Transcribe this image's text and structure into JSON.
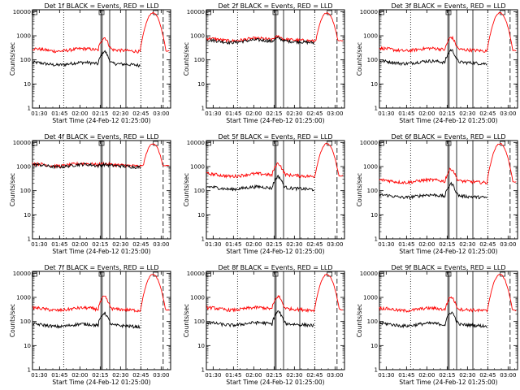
{
  "chart_data": {
    "type": "line",
    "layout": "3x3 grid",
    "x_tick_labels": [
      "01:30",
      "01:45",
      "02:00",
      "02:15",
      "02:30",
      "02:45",
      "03:00"
    ],
    "x_ticks_minutes": [
      90,
      105,
      120,
      135,
      150,
      165,
      180
    ],
    "xlim_minutes": [
      85,
      187
    ],
    "xlabel": "Start Time (24-Feb-12 01:25:00)",
    "ylabel": "Counts/sec",
    "y_scale": "log",
    "ylim": [
      1,
      12000
    ],
    "y_tick_labels": [
      "1",
      "10",
      "100",
      "1000",
      "10000"
    ],
    "series_colors": {
      "events": "#000000",
      "lld": "#ff0000"
    },
    "vlines_solid_minutes": [
      135.5,
      136.5,
      142,
      154
    ],
    "vlines_dotted_minutes": [
      108,
      165
    ],
    "vlines_dashed_minutes": [
      181.5
    ],
    "panels": [
      {
        "title": "Det 1f BLACK = Events, RED = LLD",
        "events_base": 70,
        "lld_base": 260,
        "bump_scale": 1.0
      },
      {
        "title": "Det 2f BLACK = Events, RED = LLD",
        "events_base": 600,
        "lld_base": 700,
        "bump_scale": 0.15
      },
      {
        "title": "Det 3f BLACK = Events, RED = LLD",
        "events_base": 80,
        "lld_base": 270,
        "bump_scale": 1.0
      },
      {
        "title": "Det 4f BLACK = Events, RED = LLD",
        "events_base": 1100,
        "lld_base": 1200,
        "bump_scale": 0.05
      },
      {
        "title": "Det 5f BLACK = Events, RED = LLD",
        "events_base": 130,
        "lld_base": 450,
        "bump_scale": 0.9
      },
      {
        "title": "Det 6f BLACK = Events, RED = LLD",
        "events_base": 60,
        "lld_base": 250,
        "bump_scale": 1.0
      },
      {
        "title": "Det 7f BLACK = Events, RED = LLD",
        "events_base": 70,
        "lld_base": 330,
        "bump_scale": 1.0
      },
      {
        "title": "Det 8f BLACK = Events, RED = LLD",
        "events_base": 80,
        "lld_base": 340,
        "bump_scale": 1.0
      },
      {
        "title": "Det 9f BLACK = Events, RED = LLD",
        "events_base": 75,
        "lld_base": 320,
        "bump_scale": 1.0
      }
    ]
  }
}
